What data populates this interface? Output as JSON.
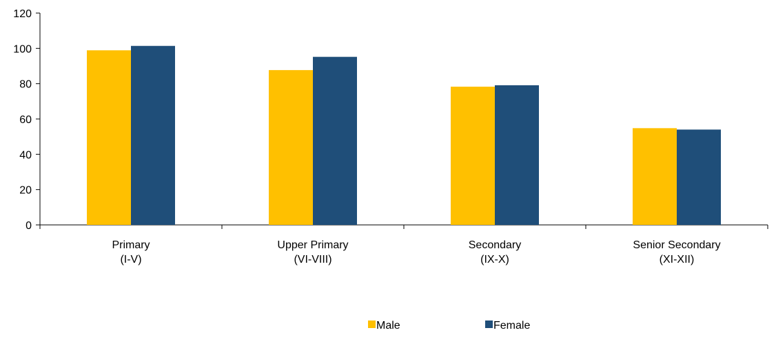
{
  "chart_data": {
    "type": "bar",
    "title": "",
    "xlabel": "",
    "ylabel": "",
    "ylim": [
      0,
      120
    ],
    "yticks": [
      0,
      20,
      40,
      60,
      80,
      100,
      120
    ],
    "grid": false,
    "legend_position": "bottom-center",
    "categories": [
      [
        "Primary",
        "(I-V)"
      ],
      [
        "Upper Primary",
        "(VI-VIII)"
      ],
      [
        "Secondary",
        "(IX-X)"
      ],
      [
        "Senior Secondary",
        "(XI-XII)"
      ]
    ],
    "series": [
      {
        "name": "Male",
        "color": "#FFC000",
        "values": [
          98.9,
          87.7,
          78.3,
          54.8
        ]
      },
      {
        "name": "Female",
        "color": "#1F4E79",
        "values": [
          101.4,
          95.2,
          79.1,
          54.0
        ]
      }
    ]
  }
}
